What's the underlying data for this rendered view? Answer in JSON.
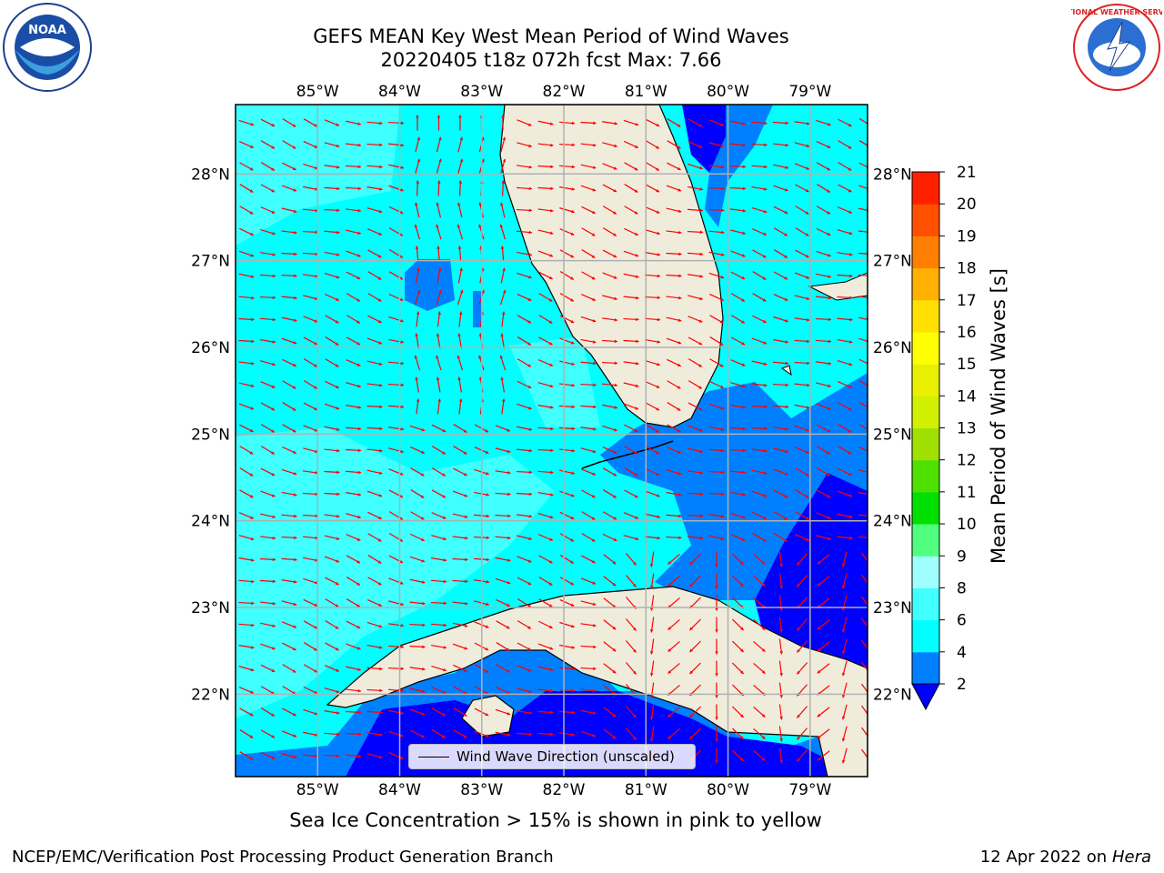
{
  "header": {
    "title_line1": "GEFS MEAN Key West Mean Period of Wind Waves",
    "title_line2": "20220405 t18z 072h fcst   Max: 7.66"
  },
  "logos": {
    "left": {
      "name": "noaa-logo",
      "text": "NOAA"
    },
    "right": {
      "name": "national-weather-service-logo",
      "text": "NATIONAL WEATHER SERVICE"
    }
  },
  "map": {
    "lon_ticks": [
      "85°W",
      "84°W",
      "83°W",
      "82°W",
      "81°W",
      "80°W",
      "79°W"
    ],
    "lat_ticks": [
      "28°N",
      "27°N",
      "26°N",
      "25°N",
      "24°N",
      "23°N",
      "22°N"
    ],
    "lon_values": [
      -85,
      -84,
      -83,
      -82,
      -81,
      -80,
      -79
    ],
    "lat_values": [
      28,
      27,
      26,
      25,
      24,
      23,
      22
    ],
    "extent": {
      "lon_min": -86.0,
      "lon_max": -78.3,
      "lat_min": 21.05,
      "lat_max": 28.8
    },
    "legend_label": "Wind Wave Direction (unscaled)",
    "arrow_color": "#ff0000",
    "land_color": "#efecdc",
    "grid_color": "#b0b0b0"
  },
  "colorbar": {
    "label": "Mean Period of Wind Waves [s]",
    "ticks": [
      "2",
      "4",
      "6",
      "8",
      "9",
      "10",
      "11",
      "12",
      "13",
      "14",
      "15",
      "16",
      "17",
      "18",
      "19",
      "20",
      "21"
    ],
    "colors": [
      "#0080ff",
      "#00ffff",
      "#40ffff",
      "#9fffff",
      "#50ff80",
      "#00e000",
      "#50e000",
      "#a0e000",
      "#d0f000",
      "#e8f000",
      "#ffff00",
      "#ffe000",
      "#ffb000",
      "#ff8000",
      "#ff5000",
      "#ff2000"
    ],
    "under_color": "#0000ff"
  },
  "footer": {
    "ice_note": "Sea Ice Concentration > 15% is shown in pink to yellow",
    "left": "NCEP/EMC/Verification Post Processing Product Generation Branch",
    "right_date": "12 Apr 2022 on ",
    "right_host": "Hera"
  }
}
